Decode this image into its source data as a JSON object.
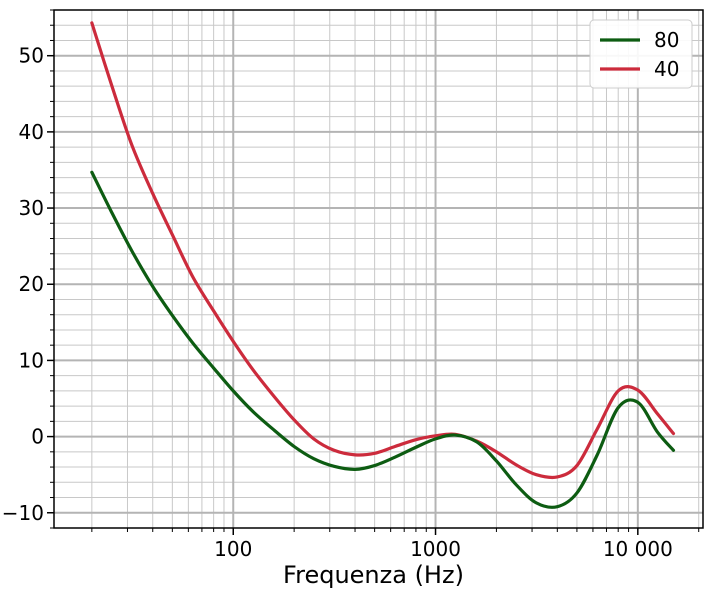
{
  "chart_data": {
    "type": "line",
    "xscale": "log",
    "title": "",
    "xlabel": "Frequenza (Hz)",
    "ylabel": "",
    "xlim": [
      13,
      21000
    ],
    "ylim": [
      -12,
      56
    ],
    "grid": true,
    "legend": "top-right",
    "x_ticks": [
      {
        "value": 100,
        "label": "100"
      },
      {
        "value": 1000,
        "label": "1000"
      },
      {
        "value": 10000,
        "label": "10 000"
      }
    ],
    "y_ticks": [
      {
        "value": -10,
        "label": "−10"
      },
      {
        "value": 0,
        "label": "0"
      },
      {
        "value": 10,
        "label": "10"
      },
      {
        "value": 20,
        "label": "20"
      },
      {
        "value": 30,
        "label": "30"
      },
      {
        "value": 40,
        "label": "40"
      },
      {
        "value": 50,
        "label": "50"
      }
    ],
    "series": [
      {
        "name": "80",
        "color": "#0d5c12",
        "x": [
          20,
          25,
          31.5,
          40,
          50,
          63,
          80,
          100,
          125,
          160,
          200,
          250,
          315,
          400,
          500,
          630,
          800,
          1000,
          1250,
          1600,
          2000,
          2500,
          3150,
          4000,
          5000,
          6300,
          8000,
          10000,
          12500,
          15000
        ],
        "y": [
          34.7,
          29.5,
          24.4,
          19.7,
          15.9,
          12.3,
          9.0,
          6.0,
          3.3,
          0.8,
          -1.3,
          -2.9,
          -3.9,
          -4.3,
          -3.8,
          -2.7,
          -1.4,
          -0.3,
          0.2,
          -0.7,
          -3.2,
          -6.3,
          -8.7,
          -9.2,
          -7.4,
          -2.4,
          3.8,
          4.5,
          0.6,
          -1.8
        ]
      },
      {
        "name": "40",
        "color": "#cc2b3c",
        "x": [
          20,
          25,
          31.5,
          40,
          50,
          63,
          80,
          100,
          125,
          160,
          200,
          250,
          315,
          400,
          500,
          630,
          800,
          1000,
          1250,
          1600,
          2000,
          2500,
          3150,
          4000,
          5000,
          6300,
          8000,
          10000,
          12500,
          15000
        ],
        "y": [
          54.3,
          46.2,
          38.3,
          31.9,
          26.5,
          21.0,
          16.5,
          12.5,
          8.8,
          5.2,
          2.2,
          -0.3,
          -1.8,
          -2.4,
          -2.2,
          -1.3,
          -0.4,
          0.1,
          0.3,
          -0.6,
          -2.0,
          -3.7,
          -5.0,
          -5.3,
          -3.8,
          1.0,
          6.0,
          6.1,
          3.0,
          0.4
        ]
      }
    ]
  }
}
